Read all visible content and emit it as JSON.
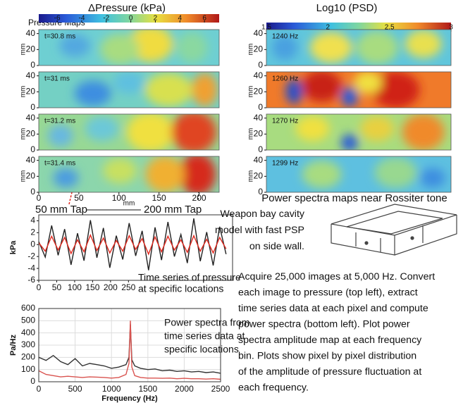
{
  "pressure_maps": {
    "title": "ΔPressure (kPa)",
    "label": "Pressure Maps",
    "colorbar": {
      "lim": [
        -7.5,
        7.2
      ],
      "ticks": [
        -6,
        -4,
        -2,
        0,
        2,
        4,
        6
      ]
    },
    "ylabel": "mm",
    "ylim": [
      0,
      45
    ],
    "yticks": [
      0,
      20,
      40
    ],
    "xlabel": "mm",
    "xlim": [
      0,
      225
    ],
    "xticks": [
      0,
      50,
      100,
      150,
      200
    ],
    "maps": [
      {
        "label": "t=30.8 ms"
      },
      {
        "label": "t=31 ms"
      },
      {
        "label": "t=31.2 ms"
      },
      {
        "label": "t=31.4 ms"
      }
    ],
    "taps": [
      "50 mm Tap",
      "200 mm Tap"
    ]
  },
  "psd_maps": {
    "title": "Log10 (PSD)",
    "colorbar": {
      "lim": [
        1.5,
        3
      ],
      "ticks": [
        1.5,
        2,
        2.5,
        3
      ]
    },
    "ylabel": "mm",
    "ylim": [
      0,
      45
    ],
    "yticks": [
      0,
      20,
      40
    ],
    "maps": [
      {
        "label": "1240 Hz"
      },
      {
        "label": "1260 Hz"
      },
      {
        "label": "1270 Hz"
      },
      {
        "label": "1299 Hz"
      }
    ],
    "caption": "Power spectra maps near Rossiter tone"
  },
  "chart_data": [
    {
      "type": "line",
      "ylabel": "kPa",
      "annotation": [
        "Time series of pressure",
        "at specific locations"
      ],
      "xlim": [
        0,
        540
      ],
      "xticks": [
        0,
        50,
        100,
        150,
        200,
        250
      ],
      "ylim": [
        -6,
        5
      ],
      "yticks": [
        -6,
        -4,
        -2,
        0,
        2,
        4
      ],
      "grid": false,
      "x": [
        0,
        18,
        36,
        54,
        72,
        90,
        108,
        126,
        144,
        162,
        180,
        198,
        216,
        234,
        252,
        270,
        288,
        306,
        324,
        342,
        360,
        378,
        396,
        414,
        432,
        450,
        468,
        486,
        504,
        522
      ],
      "series": [
        {
          "color": "#222222",
          "values": [
            0.5,
            -2.1,
            3.2,
            -1.8,
            2.6,
            -3.4,
            1.9,
            -2.7,
            4.1,
            -2.2,
            2.8,
            -3.9,
            1.5,
            -2.5,
            3.6,
            -1.9,
            2.3,
            -4.3,
            2.9,
            -2.6,
            3.8,
            -2.0,
            1.7,
            -3.1,
            4.4,
            -2.8,
            2.1,
            -3.5,
            3.0,
            -1.6
          ]
        },
        {
          "color": "#e0281e",
          "values": [
            0.3,
            -1.1,
            1.4,
            -0.9,
            1.2,
            -1.5,
            0.8,
            -1.2,
            1.6,
            -1.0,
            1.1,
            -1.4,
            0.7,
            -1.1,
            1.5,
            -0.8,
            1.0,
            -1.6,
            1.3,
            -1.2,
            1.4,
            -0.9,
            0.8,
            -1.3,
            1.5,
            -1.1,
            0.9,
            -1.4,
            1.2,
            -0.7
          ]
        }
      ]
    },
    {
      "type": "line",
      "ylabel": "Pa/Hz",
      "xlabel": "Frequency (Hz)",
      "annotation": [
        "Power spectra from",
        "time series data at",
        "specific locations"
      ],
      "xlim": [
        0,
        2500
      ],
      "xticks": [
        0,
        500,
        1000,
        1500,
        2000,
        2500
      ],
      "ylim": [
        0,
        600
      ],
      "yticks": [
        0,
        100,
        200,
        300,
        400,
        500,
        600
      ],
      "grid": true,
      "x": [
        0,
        100,
        200,
        300,
        400,
        500,
        600,
        700,
        800,
        900,
        1000,
        1100,
        1200,
        1240,
        1260,
        1280,
        1320,
        1400,
        1500,
        1600,
        1700,
        1800,
        1900,
        2000,
        2100,
        2200,
        2300,
        2400,
        2500
      ],
      "series": [
        {
          "color": "#333333",
          "values": [
            200,
            175,
            215,
            165,
            140,
            190,
            130,
            150,
            140,
            130,
            110,
            120,
            140,
            200,
            470,
            180,
            130,
            110,
            100,
            105,
            90,
            95,
            85,
            90,
            80,
            85,
            75,
            80,
            70
          ]
        },
        {
          "color": "#d9534f",
          "values": [
            90,
            60,
            50,
            40,
            45,
            40,
            35,
            40,
            38,
            35,
            30,
            35,
            60,
            150,
            500,
            120,
            50,
            35,
            30,
            30,
            28,
            30,
            25,
            28,
            25,
            25,
            22,
            25,
            20
          ]
        }
      ]
    }
  ],
  "model_note": [
    "Weapon bay cavity",
    "model with fast PSP",
    "on side wall."
  ],
  "description": [
    "Acquire 25,000 images at 5,000 Hz. Convert",
    "each image to pressure (top left), extract",
    "time series data at each pixel and compute",
    "power spectra (bottom left). Plot power",
    "spectra amplitude map at each frequency",
    "bin. Plots show pixel by pixel distribution",
    "of the amplitude of pressure fluctuation at",
    "each frequency."
  ]
}
